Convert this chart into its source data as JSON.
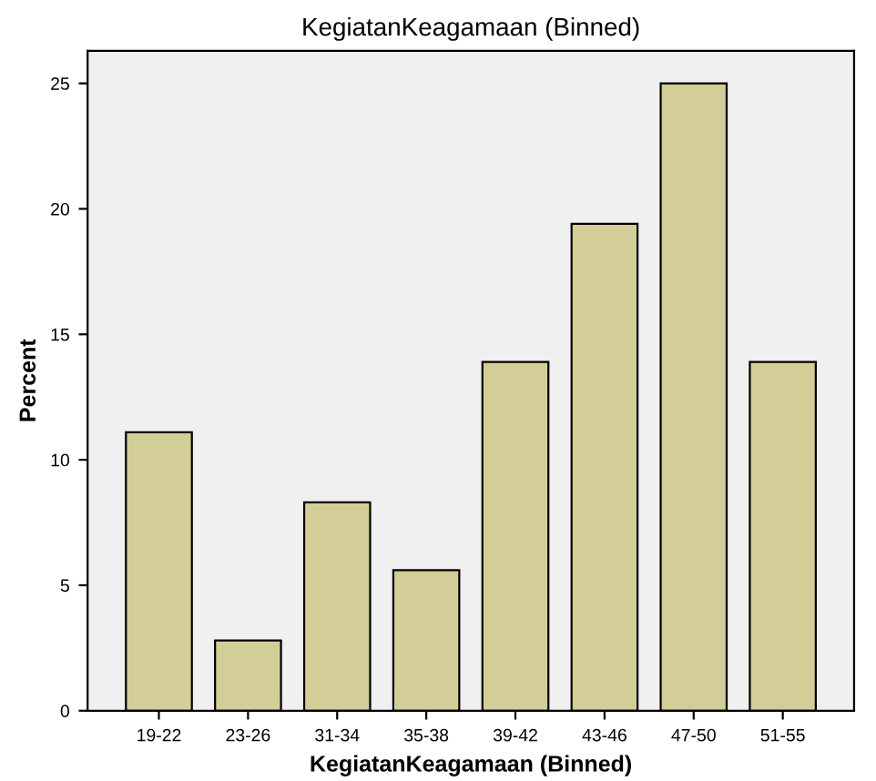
{
  "chart_data": {
    "type": "bar",
    "title": "KegiatanKeagamaan (Binned)",
    "xlabel": "KegiatanKeagamaan (Binned)",
    "ylabel": "Percent",
    "categories": [
      "19-22",
      "23-26",
      "31-34",
      "35-38",
      "39-42",
      "43-46",
      "47-50",
      "51-55"
    ],
    "values": [
      11.1,
      2.8,
      8.3,
      5.6,
      13.9,
      19.4,
      25,
      13.9
    ],
    "color": "#d3ce97",
    "ylim": [
      0,
      26.3
    ],
    "yticks": [
      0,
      5,
      10,
      15,
      20,
      25
    ],
    "grid": false
  }
}
